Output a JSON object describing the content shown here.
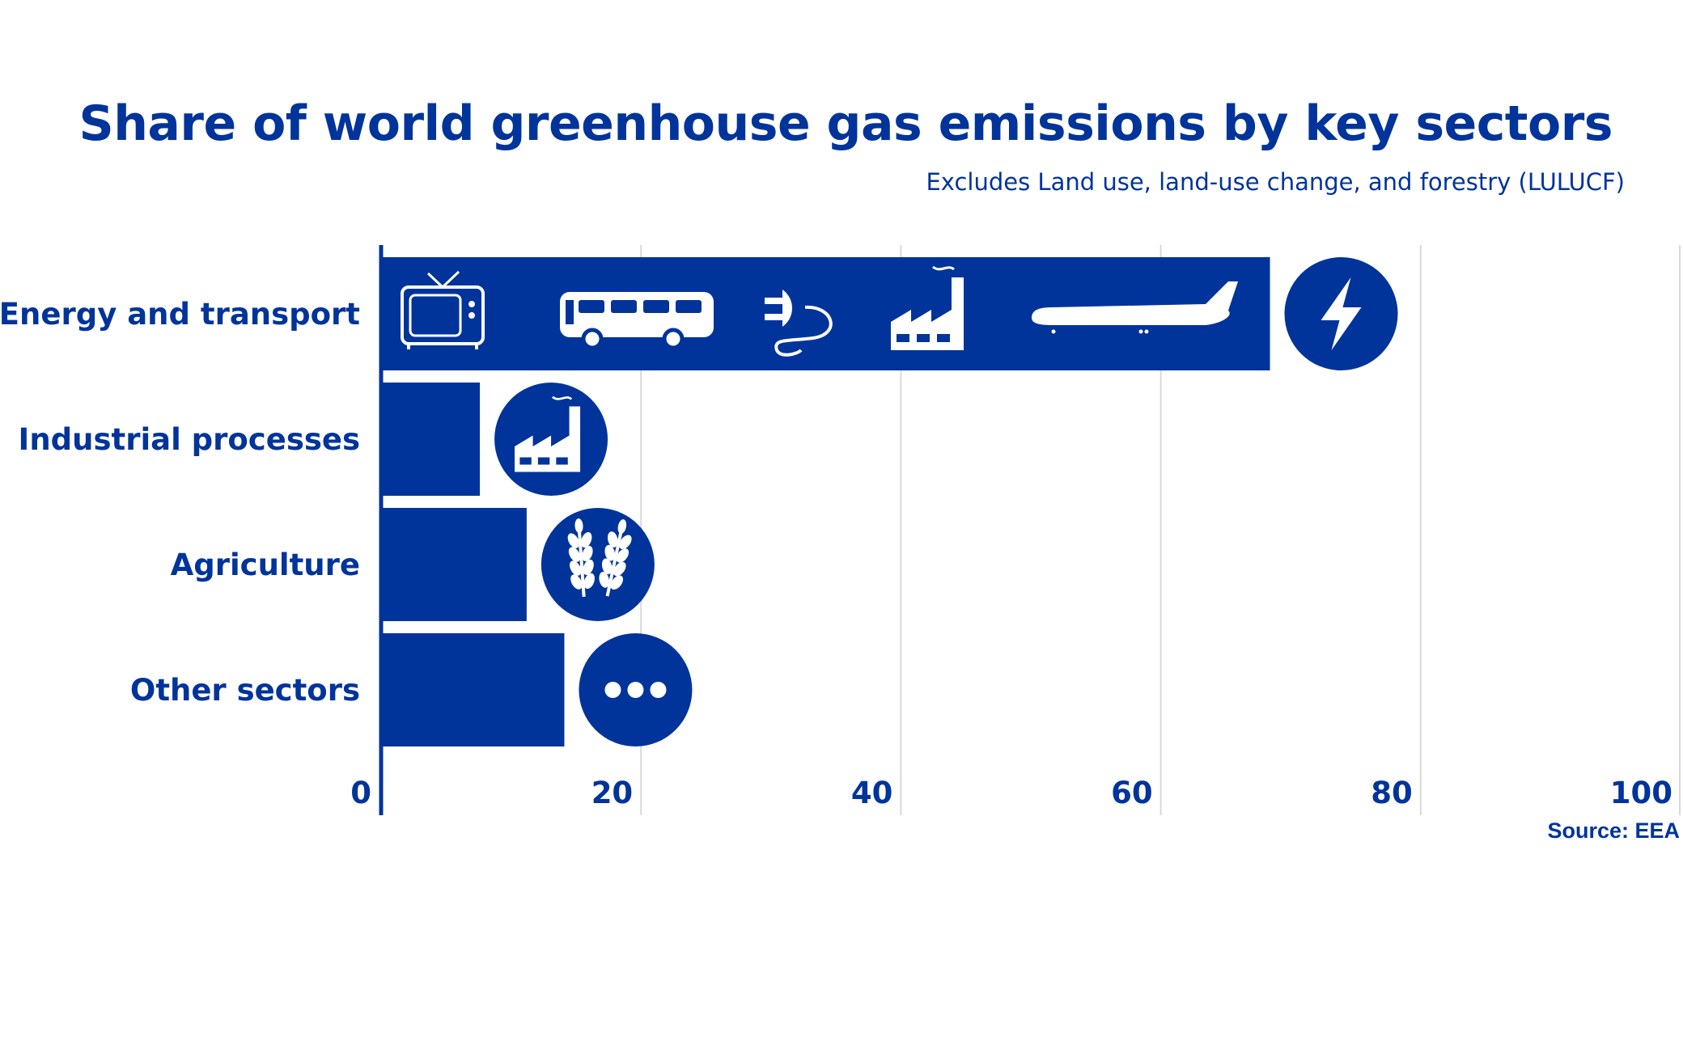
{
  "title": "Share of world greenhouse gas emissions by key sectors",
  "subtitle": "Excludes Land use, land-use change, and forestry (LULUCF)",
  "source": "Source: EEA",
  "colors": {
    "bar": "#00349b",
    "grid": "#d9d9d9",
    "text": "#00349b"
  },
  "chart_data": {
    "type": "bar",
    "orientation": "horizontal",
    "categories": [
      "Energy and transport",
      "Industrial processes",
      "Agriculture",
      "Other sectors"
    ],
    "values": [
      68.4,
      7.6,
      11.2,
      14.1
    ],
    "xlim": [
      0,
      100
    ],
    "xticks": [
      "0",
      "20",
      "40",
      "60",
      "80",
      "100"
    ],
    "grid": "vertical",
    "icons": [
      [
        "tv-icon",
        "bus-icon",
        "plug-icon",
        "factory-icon",
        "airplane-icon",
        "lightning-icon"
      ],
      [
        "factory-icon"
      ],
      [
        "wheat-icon"
      ],
      [
        "more-dots-icon"
      ]
    ]
  }
}
